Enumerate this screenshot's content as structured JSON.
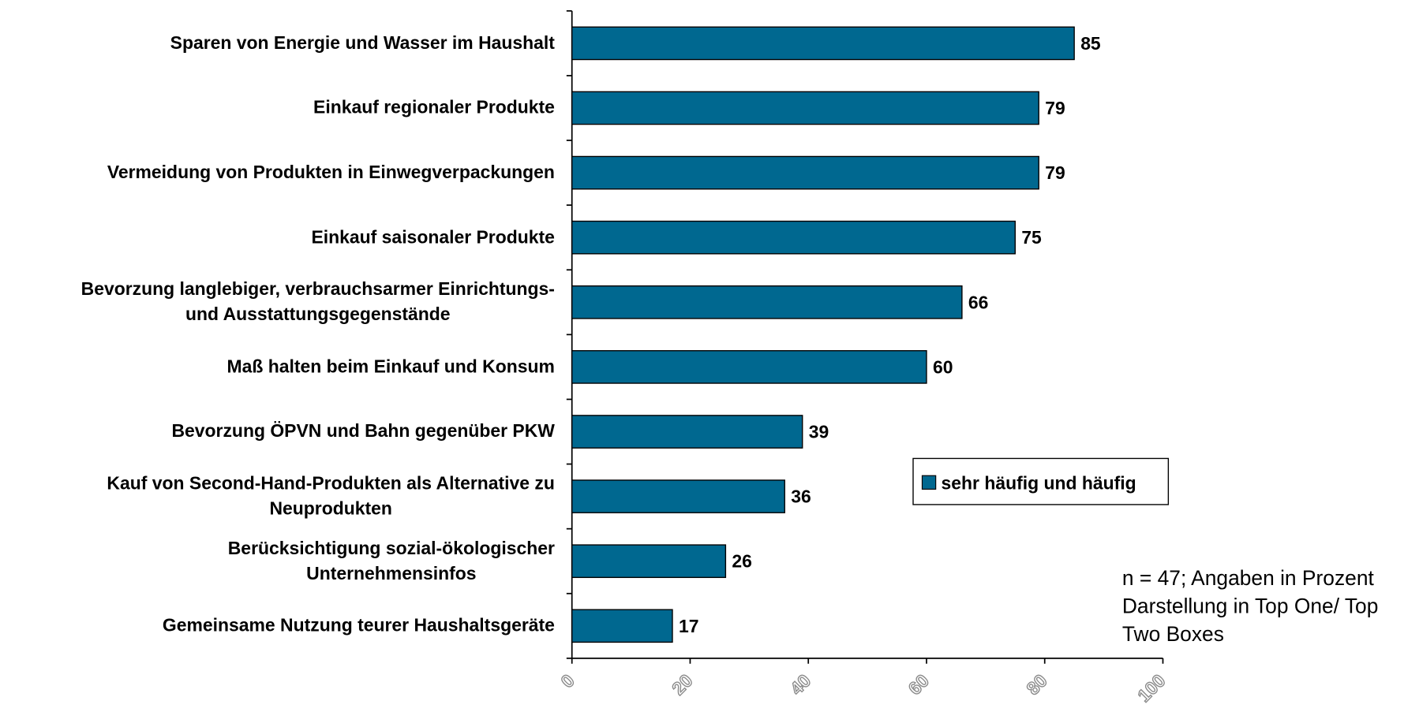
{
  "chart_data": {
    "type": "bar",
    "orientation": "horizontal",
    "categories": [
      "Sparen von Energie und Wasser im Haushalt",
      "Einkauf regionaler Produkte",
      "Vermeidung von Produkten in Einwegverpackungen",
      "Einkauf saisonaler Produkte",
      "Bevorzung langlebiger, verbrauchsarmer Einrichtungs-\nund Ausstattungsgegenstände",
      "Maß halten beim Einkauf und Konsum",
      "Bevorzung ÖPVN und Bahn gegenüber PKW",
      "Kauf von Second-Hand-Produkten als Alternative zu\nNeuprodukten",
      "Berücksichtigung sozial-ökologischer\nUnternehmensinfos",
      "Gemeinsame Nutzung teurer Haushaltsgeräte"
    ],
    "series": [
      {
        "name": "sehr häufig und häufig",
        "color": "#006890",
        "values": [
          85,
          79,
          79,
          75,
          66,
          60,
          39,
          36,
          26,
          17
        ]
      }
    ],
    "xlim": [
      0,
      100
    ],
    "xticks": [
      0,
      20,
      40,
      60,
      80,
      100
    ],
    "legend": "center-right",
    "note": "n = 47; Angaben in Prozent\nDarstellung in Top One/ Top\nTwo Boxes"
  }
}
